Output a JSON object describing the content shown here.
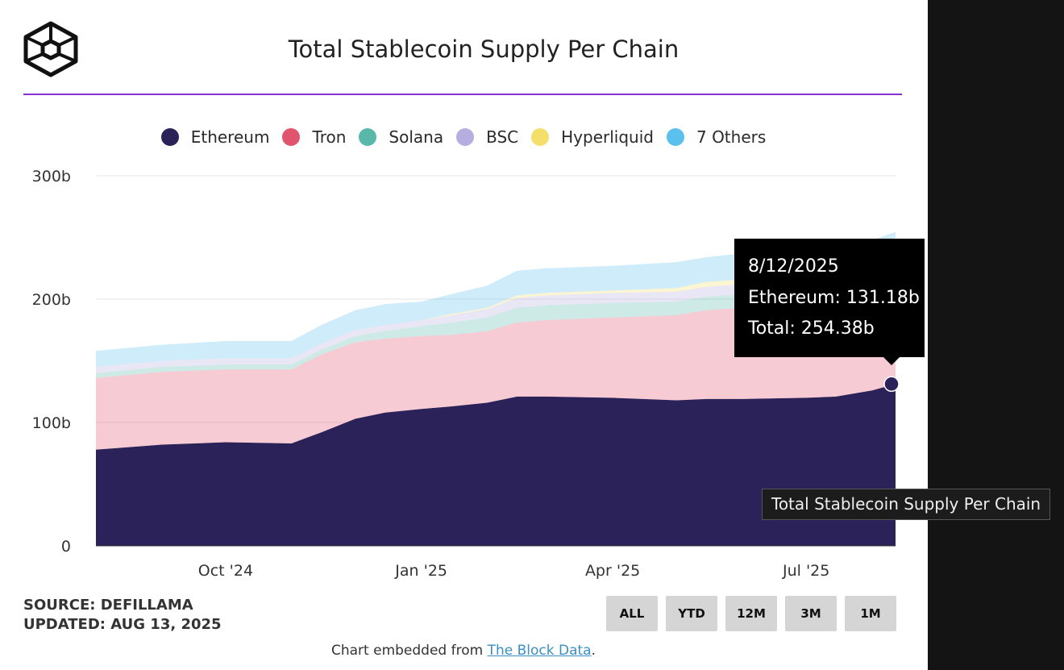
{
  "chart_data": {
    "type": "area",
    "title": "Total Stablecoin Supply Per Chain",
    "stacked": true,
    "x_label_ticks": [
      "Oct '24",
      "Jan '25",
      "Apr '25",
      "Jul '25"
    ],
    "y_ticks": [
      "0",
      "100b",
      "200b",
      "300b"
    ],
    "ylim": [
      0,
      300
    ],
    "x": [
      "2024-08-01",
      "2024-09-01",
      "2024-10-01",
      "2024-11-01",
      "2024-11-15",
      "2024-12-01",
      "2024-12-15",
      "2025-01-01",
      "2025-01-15",
      "2025-02-01",
      "2025-02-15",
      "2025-03-01",
      "2025-04-01",
      "2025-05-01",
      "2025-05-15",
      "2025-06-01",
      "2025-07-01",
      "2025-07-15",
      "2025-08-01",
      "2025-08-12"
    ],
    "series": [
      {
        "name": "Ethereum",
        "color": "#2a2258",
        "values": [
          78,
          82,
          84,
          83,
          92,
          103,
          108,
          111,
          113,
          116,
          121,
          121,
          120,
          118,
          119,
          119,
          120,
          121,
          126,
          131.18
        ]
      },
      {
        "name": "Tron",
        "color": "#e0546e",
        "values": [
          58,
          59,
          59,
          60,
          63,
          62,
          60,
          59,
          58,
          58,
          60,
          62,
          65,
          69,
          72,
          74,
          75,
          75,
          76,
          77
        ]
      },
      {
        "name": "Solana",
        "color": "#5ab8ab",
        "values": [
          4,
          4,
          4,
          4,
          4,
          5,
          6,
          8,
          10,
          11,
          12,
          12,
          12,
          11,
          11,
          11,
          11,
          11,
          11,
          11
        ]
      },
      {
        "name": "BSC",
        "color": "#b6aee0",
        "values": [
          5,
          5,
          5,
          5,
          5,
          5,
          5,
          5,
          6,
          7,
          8,
          8,
          8,
          8,
          8,
          8,
          8,
          8,
          8,
          8
        ]
      },
      {
        "name": "Hyperliquid",
        "color": "#f5df6b",
        "values": [
          0,
          0,
          0,
          0,
          0,
          0,
          0,
          0,
          1,
          1,
          2,
          2,
          2,
          3,
          4,
          4,
          4,
          4,
          5,
          5
        ]
      },
      {
        "name": "7 Others",
        "color": "#5cc0ee",
        "values": [
          13,
          13,
          14,
          14,
          15,
          16,
          17,
          15,
          16,
          18,
          20,
          20,
          20,
          21,
          20,
          21,
          21,
          21,
          22,
          22.2
        ]
      }
    ],
    "grid": true,
    "legend_position": "top",
    "tooltip": {
      "date": "8/12/2025",
      "ethereum": "Ethereum: 131.18b",
      "total": "Total: 254.38b"
    }
  },
  "header": {
    "title": "Total Stablecoin Supply Per Chain"
  },
  "legend": {
    "items": [
      {
        "label": "Ethereum",
        "color": "#2a2258"
      },
      {
        "label": "Tron",
        "color": "#e0546e"
      },
      {
        "label": "Solana",
        "color": "#5ab8ab"
      },
      {
        "label": "BSC",
        "color": "#b6aee0"
      },
      {
        "label": "Hyperliquid",
        "color": "#f5df6b"
      },
      {
        "label": "7 Others",
        "color": "#5cc0ee"
      }
    ]
  },
  "hover_label": "Total Stablecoin Supply Per Chain",
  "footer": {
    "source": "SOURCE: DEFILLAMA",
    "updated": "UPDATED: AUG 13, 2025",
    "buttons": [
      "ALL",
      "YTD",
      "12M",
      "3M",
      "1M"
    ],
    "embed_prefix": "Chart embedded from ",
    "embed_link": "The Block Data",
    "embed_suffix": "."
  },
  "colors": {
    "accent_rule": "#8a2fd1",
    "link": "#3a8fc4"
  }
}
